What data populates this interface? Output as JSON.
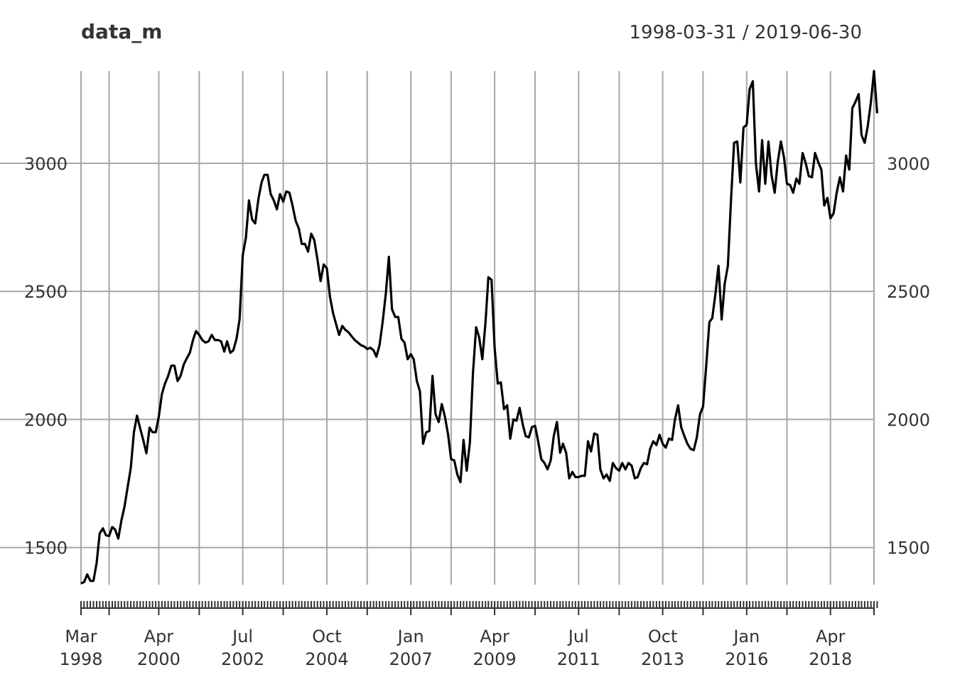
{
  "chart_data": {
    "type": "line",
    "title": "data_m",
    "date_range_label": "1998-03-31 / 2019-06-30",
    "xlabel": "",
    "ylabel": "",
    "ylim": [
      1355,
      3360
    ],
    "xlim": [
      "1998-03-31",
      "2019-06-30"
    ],
    "grid": true,
    "y_ticks": [
      1500,
      2000,
      2500,
      3000
    ],
    "y_tick_labels": [
      "1500",
      "2000",
      "2500",
      "3000"
    ],
    "x_major_ticks": [
      {
        "date": "1998-03-31",
        "label_month": "Mar",
        "label_year": "1998"
      },
      {
        "date": "2000-04-30",
        "label_month": "Apr",
        "label_year": "2000"
      },
      {
        "date": "2002-07-31",
        "label_month": "Jul",
        "label_year": "2002"
      },
      {
        "date": "2004-10-31",
        "label_month": "Oct",
        "label_year": "2004"
      },
      {
        "date": "2007-01-31",
        "label_month": "Jan",
        "label_year": "2007"
      },
      {
        "date": "2009-04-30",
        "label_month": "Apr",
        "label_year": "2009"
      },
      {
        "date": "2011-07-31",
        "label_month": "Jul",
        "label_year": "2011"
      },
      {
        "date": "2013-10-31",
        "label_month": "Oct",
        "label_year": "2013"
      },
      {
        "date": "2016-01-31",
        "label_month": "Jan",
        "label_year": "2016"
      },
      {
        "date": "2018-04-30",
        "label_month": "Apr",
        "label_year": "2018"
      }
    ],
    "x_grid_dates": [
      "1998-03-31",
      "1998-12-31",
      "2000-04-30",
      "2001-05-31",
      "2002-07-31",
      "2003-08-31",
      "2004-10-31",
      "2005-11-30",
      "2007-01-31",
      "2008-02-29",
      "2009-04-30",
      "2010-05-31",
      "2011-07-31",
      "2012-08-31",
      "2013-10-31",
      "2014-11-30",
      "2016-01-31",
      "2017-02-28",
      "2018-04-30",
      "2019-06-30"
    ],
    "series": [
      {
        "start": "1998-03-31",
        "frequency": "monthly",
        "values": [
          1360,
          1365,
          1395,
          1370,
          1370,
          1440,
          1555,
          1575,
          1548,
          1545,
          1580,
          1570,
          1535,
          1605,
          1660,
          1735,
          1810,
          1950,
          2015,
          1965,
          1920,
          1868,
          1968,
          1950,
          1950,
          2010,
          2100,
          2140,
          2170,
          2210,
          2210,
          2150,
          2170,
          2215,
          2240,
          2260,
          2310,
          2345,
          2330,
          2310,
          2300,
          2305,
          2330,
          2310,
          2310,
          2305,
          2265,
          2305,
          2260,
          2270,
          2315,
          2390,
          2640,
          2710,
          2855,
          2780,
          2765,
          2860,
          2925,
          2955,
          2955,
          2880,
          2855,
          2820,
          2880,
          2850,
          2890,
          2885,
          2835,
          2775,
          2745,
          2685,
          2685,
          2655,
          2725,
          2700,
          2625,
          2540,
          2605,
          2590,
          2480,
          2415,
          2370,
          2330,
          2365,
          2350,
          2340,
          2325,
          2310,
          2300,
          2290,
          2285,
          2275,
          2280,
          2270,
          2245,
          2290,
          2380,
          2490,
          2635,
          2430,
          2400,
          2400,
          2315,
          2300,
          2235,
          2255,
          2235,
          2150,
          2110,
          1905,
          1950,
          1955,
          2170,
          2020,
          1990,
          2060,
          2010,
          1940,
          1845,
          1840,
          1785,
          1755,
          1920,
          1800,
          1910,
          2180,
          2360,
          2320,
          2235,
          2380,
          2555,
          2545,
          2280,
          2140,
          2145,
          2040,
          2055,
          1925,
          2000,
          1995,
          2045,
          1980,
          1935,
          1930,
          1970,
          1975,
          1915,
          1845,
          1830,
          1805,
          1840,
          1935,
          1990,
          1870,
          1905,
          1870,
          1770,
          1795,
          1775,
          1775,
          1780,
          1780,
          1915,
          1875,
          1945,
          1940,
          1805,
          1770,
          1785,
          1760,
          1830,
          1810,
          1800,
          1830,
          1805,
          1830,
          1820,
          1770,
          1775,
          1810,
          1830,
          1825,
          1885,
          1915,
          1900,
          1940,
          1905,
          1890,
          1925,
          1920,
          2000,
          2055,
          1970,
          1935,
          1905,
          1885,
          1880,
          1930,
          2020,
          2050,
          2210,
          2380,
          2395,
          2490,
          2600,
          2390,
          2530,
          2600,
          2860,
          3080,
          3085,
          2925,
          3140,
          3150,
          3290,
          3320,
          3000,
          2890,
          3090,
          2920,
          3085,
          2955,
          2885,
          3005,
          3085,
          3020,
          2920,
          2915,
          2885,
          2940,
          2920,
          3040,
          3000,
          2950,
          2945,
          3040,
          3005,
          2975,
          2835,
          2865,
          2785,
          2805,
          2885,
          2945,
          2890,
          3030,
          2975,
          3215,
          3240,
          3270,
          3110,
          3080,
          3145,
          3240,
          3360,
          3195
        ]
      }
    ]
  }
}
